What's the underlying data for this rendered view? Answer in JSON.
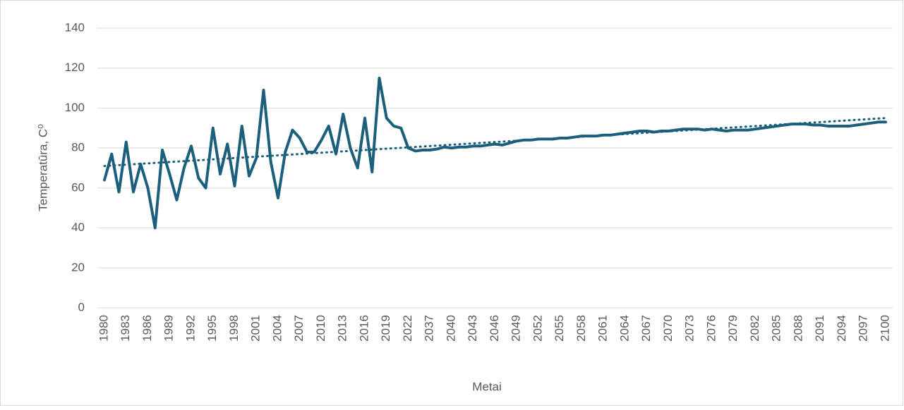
{
  "chart_data": {
    "type": "line",
    "y_label": "Temperatūra, C⁰",
    "x_label": "Metai",
    "categories": [
      "1980",
      null,
      null,
      "1983",
      null,
      null,
      "1986",
      null,
      null,
      "1989",
      null,
      null,
      "1992",
      null,
      null,
      "1995",
      null,
      null,
      "1998",
      null,
      null,
      "2001",
      null,
      null,
      "2004",
      null,
      null,
      "2007",
      null,
      null,
      "2010",
      null,
      null,
      "2013",
      null,
      null,
      "2016",
      null,
      null,
      "2019",
      null,
      null,
      "2022",
      null,
      null,
      "2037",
      null,
      null,
      "2040",
      null,
      null,
      "2043",
      null,
      null,
      "2046",
      null,
      null,
      "2049",
      null,
      null,
      "2052",
      null,
      null,
      "2055",
      null,
      null,
      "2058",
      null,
      null,
      "2061",
      null,
      null,
      "2064",
      null,
      null,
      "2067",
      null,
      null,
      "2070",
      null,
      null,
      "2073",
      null,
      null,
      "2076",
      null,
      null,
      "2079",
      null,
      null,
      "2082",
      null,
      null,
      "2085",
      null,
      null,
      "2088",
      null,
      null,
      "2091",
      null,
      null,
      "2094",
      null,
      null,
      "2097",
      null,
      null,
      "2100"
    ],
    "series": [
      {
        "color": "#1b5f7c",
        "values": [
          64,
          77,
          58,
          83,
          58,
          72,
          60,
          40,
          79,
          67,
          54,
          70,
          81,
          65,
          60,
          90,
          67,
          82,
          61,
          91,
          66,
          75,
          109,
          73,
          55,
          78,
          89,
          85,
          78,
          78,
          84,
          91,
          77,
          97,
          80,
          70,
          95,
          68,
          115,
          95,
          91,
          90,
          80,
          78.5,
          79,
          79,
          79.5,
          80.5,
          80,
          80.5,
          80.5,
          81,
          81,
          81.5,
          82,
          81.5,
          82.5,
          83.5,
          84,
          84,
          84.5,
          84.5,
          84.5,
          85,
          85,
          85.5,
          86,
          86,
          86,
          86.5,
          86.5,
          87,
          87.5,
          88,
          88.5,
          88.5,
          88,
          88.5,
          88.5,
          89,
          89.5,
          89.5,
          89.5,
          89,
          89.5,
          89,
          88.5,
          89,
          89,
          89,
          89.5,
          90,
          90.5,
          91,
          91.5,
          92,
          92,
          92,
          91.5,
          91.5,
          91,
          91,
          91,
          91,
          91.5,
          92,
          92.5,
          93,
          93
        ]
      }
    ],
    "trend": {
      "color": "#1b5f7c",
      "start": 71,
      "end": 95
    },
    "ylim": [
      0,
      140
    ],
    "yticks": [
      0,
      20,
      40,
      60,
      80,
      100,
      120,
      140
    ],
    "grid": true
  }
}
